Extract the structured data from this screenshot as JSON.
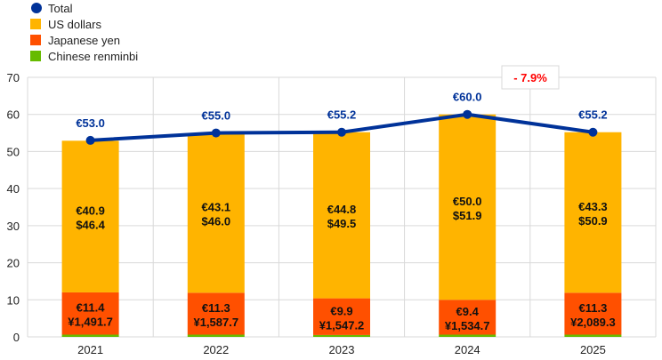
{
  "chart_data": {
    "type": "bar",
    "stacked": true,
    "title": "",
    "xlabel": "",
    "ylabel": "",
    "categories": [
      "2021",
      "2022",
      "2023",
      "2024",
      "2025"
    ],
    "ylim": [
      0,
      70
    ],
    "yticks": [
      0,
      10,
      20,
      30,
      40,
      50,
      60,
      70
    ],
    "grid": true,
    "legend_position": "top-left",
    "series": [
      {
        "name": "Chinese renminbi",
        "color": "#66bb00",
        "values": [
          0.6,
          0.6,
          0.5,
          0.6,
          0.6
        ]
      },
      {
        "name": "Japanese yen",
        "color": "#ff5000",
        "values": [
          11.4,
          11.3,
          9.9,
          9.4,
          11.3
        ],
        "labels": [
          "€11.4",
          "€11.3",
          "€9.9",
          "€9.4",
          "€11.3"
        ],
        "labels2": [
          "¥1,491.7",
          "¥1,587.7",
          "¥1,547.2",
          "¥1,534.7",
          "¥2,089.3"
        ]
      },
      {
        "name": "US dollars",
        "color": "#ffb400",
        "values": [
          40.9,
          43.1,
          44.8,
          50.0,
          43.3
        ],
        "labels": [
          "€40.9",
          "€43.1",
          "€44.8",
          "€50.0",
          "€43.3"
        ],
        "labels2": [
          "$46.4",
          "$46.0",
          "$49.5",
          "$51.9",
          "$50.9"
        ]
      }
    ],
    "line": {
      "name": "Total",
      "color": "#003299",
      "values": [
        53.0,
        55.0,
        55.2,
        60.0,
        55.2
      ],
      "labels": [
        "€53.0",
        "€55.0",
        "€55.2",
        "€60.0",
        "€55.2"
      ]
    },
    "legend_order": [
      "Total",
      "US dollars",
      "Japanese yen",
      "Chinese renminbi"
    ],
    "annotation": {
      "text": "- 7.9%",
      "color": "#ff0000"
    }
  }
}
